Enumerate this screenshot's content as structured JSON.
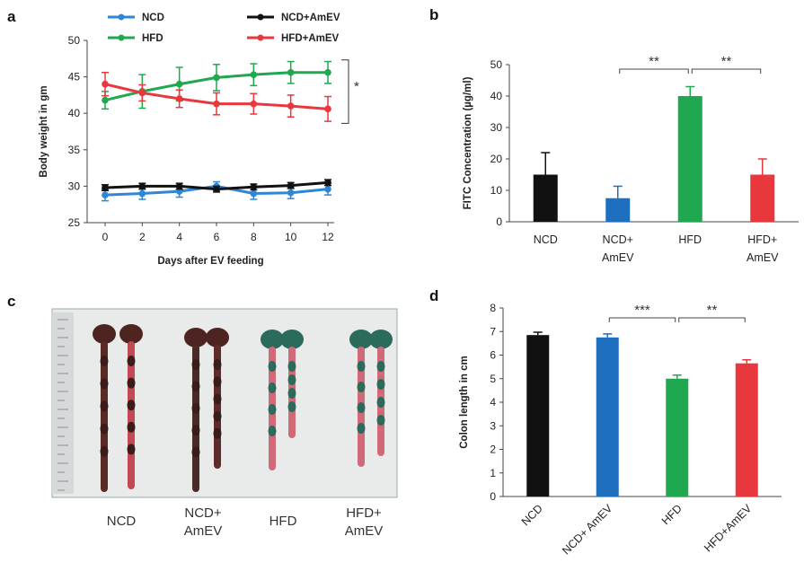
{
  "panels": {
    "a": "a",
    "b": "b",
    "c": "c",
    "d": "d"
  },
  "photo_panel": {
    "labels": [
      {
        "line1": "NCD",
        "line2": ""
      },
      {
        "line1": "NCD+",
        "line2": "AmEV"
      },
      {
        "line1": "HFD",
        "line2": ""
      },
      {
        "line1": "HFD+",
        "line2": "AmEV"
      }
    ]
  },
  "chart_data": [
    {
      "panel": "a",
      "type": "line",
      "xlabel": "Days after EV feeding",
      "ylabel": "Body weight in gm",
      "x": [
        0,
        2,
        4,
        6,
        8,
        10,
        12
      ],
      "xlim": [
        0,
        12
      ],
      "ylim": [
        25,
        50
      ],
      "yticks": [
        25,
        30,
        35,
        40,
        45,
        50
      ],
      "legend_position": "top",
      "annotation": "*",
      "series": [
        {
          "name": "NCD",
          "color": "#2e86d6",
          "values": [
            28.8,
            29.0,
            29.3,
            30.0,
            29.0,
            29.1,
            29.6
          ],
          "errors": [
            0.8,
            0.8,
            0.8,
            0.6,
            0.8,
            0.8,
            0.8
          ]
        },
        {
          "name": "HFD",
          "color": "#1fa84f",
          "values": [
            41.8,
            43.0,
            44.0,
            44.9,
            45.3,
            45.6,
            45.6
          ],
          "errors": [
            1.2,
            2.3,
            2.3,
            1.8,
            1.5,
            1.5,
            1.5
          ]
        },
        {
          "name": "NCD+AmEV",
          "color": "#111111",
          "values": [
            29.8,
            30.0,
            30.0,
            29.6,
            29.9,
            30.1,
            30.5
          ],
          "errors": [
            0.4,
            0.4,
            0.4,
            0.4,
            0.4,
            0.4,
            0.4
          ]
        },
        {
          "name": "HFD+AmEV",
          "color": "#e8383d",
          "values": [
            44.0,
            42.8,
            42.0,
            41.3,
            41.3,
            41.0,
            40.6
          ],
          "errors": [
            1.6,
            1.1,
            1.2,
            1.5,
            1.4,
            1.5,
            1.7
          ]
        }
      ]
    },
    {
      "panel": "b",
      "type": "bar",
      "ylabel": "FITC Concentration (µg/ml)",
      "categories": [
        {
          "line1": "NCD",
          "line2": ""
        },
        {
          "line1": "NCD+",
          "line2": "AmEV"
        },
        {
          "line1": "HFD",
          "line2": ""
        },
        {
          "line1": "HFD+",
          "line2": "AmEV"
        }
      ],
      "values": [
        15,
        7.5,
        40,
        15
      ],
      "errors": [
        7,
        3.8,
        3,
        5
      ],
      "colors": [
        "#111111",
        "#1f6fbf",
        "#1fa84f",
        "#e8383d"
      ],
      "ylim": [
        0,
        50
      ],
      "yticks": [
        0,
        10,
        20,
        30,
        40,
        50
      ],
      "significance": [
        {
          "from": 1,
          "to": 2,
          "label": "**"
        },
        {
          "from": 2,
          "to": 3,
          "label": "**"
        }
      ]
    },
    {
      "panel": "d",
      "type": "bar",
      "ylabel": "Colon length in cm",
      "categories": [
        "NCD",
        "NCD+ AmEV",
        "HFD",
        "HFD+AmEV"
      ],
      "values": [
        6.85,
        6.75,
        5.0,
        5.65
      ],
      "errors": [
        0.12,
        0.15,
        0.15,
        0.15
      ],
      "colors": [
        "#111111",
        "#1f6fbf",
        "#1fa84f",
        "#e8383d"
      ],
      "ylim": [
        0,
        8
      ],
      "yticks": [
        0,
        1,
        2,
        3,
        4,
        5,
        6,
        7,
        8
      ],
      "significance": [
        {
          "from": 1,
          "to": 2,
          "label": "***"
        },
        {
          "from": 2,
          "to": 3,
          "label": "**"
        }
      ]
    }
  ]
}
